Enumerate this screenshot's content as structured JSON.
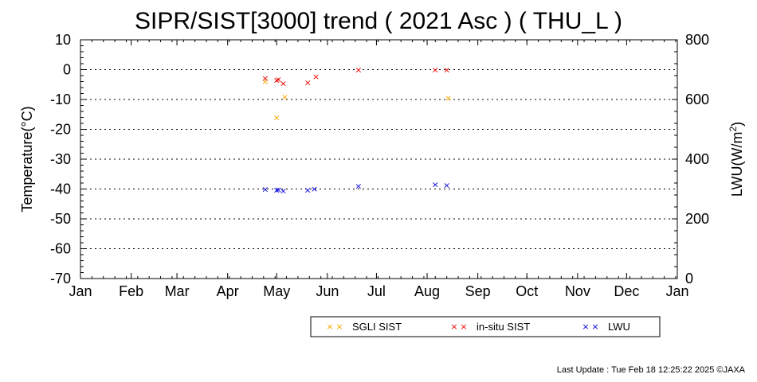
{
  "chart_data": {
    "type": "scatter",
    "title": "SIPR/SIST[3000] trend ( 2021 Asc ) ( THU_L )",
    "ylabel": "Temperature(°C)",
    "y2label_main": "LWU(W/m",
    "y2label_sup": "2",
    "y2label_tail": ")",
    "ylim": [
      -70,
      10
    ],
    "y2lim": [
      0,
      800
    ],
    "yticks": [
      "10",
      "0",
      "-10",
      "-20",
      "-30",
      "-40",
      "-50",
      "-60",
      "-70"
    ],
    "y2ticks": [
      "800",
      "600",
      "400",
      "200",
      "0"
    ],
    "xticks": [
      "Jan",
      "Feb",
      "Mar",
      "Apr",
      "May",
      "Jun",
      "Jul",
      "Aug",
      "Sep",
      "Oct",
      "Nov",
      "Dec",
      "Jan"
    ],
    "xlim_doy": [
      1,
      366
    ],
    "grid": "horizontal-dotted",
    "legend_position": "bottom-right",
    "series": [
      {
        "name": "SGLI SIST",
        "color": "#ffa500",
        "axis": "left",
        "x": [
          "2021-04-24",
          "2021-05-01",
          "2021-05-06",
          "2021-08-14"
        ],
        "y": [
          -3.8,
          -16,
          -9,
          -9.5
        ]
      },
      {
        "name": "in-situ SIST",
        "color": "#ee0000",
        "axis": "left",
        "x": [
          "2021-04-24",
          "2021-05-01",
          "2021-05-02",
          "2021-05-05",
          "2021-05-20",
          "2021-05-25",
          "2021-06-20",
          "2021-08-06",
          "2021-08-13"
        ],
        "y": [
          -2.8,
          -3.5,
          -3.2,
          -4.5,
          -4.3,
          -2.2,
          0,
          0,
          0
        ]
      },
      {
        "name": "LWU",
        "color": "#0000dd",
        "axis": "right",
        "x": [
          "2021-04-24",
          "2021-05-01",
          "2021-05-02",
          "2021-05-05",
          "2021-05-20",
          "2021-05-24",
          "2021-06-20",
          "2021-08-06",
          "2021-08-13"
        ],
        "y": [
          300,
          298,
          299,
          295,
          297,
          302,
          311,
          316,
          314
        ]
      }
    ],
    "footer": "Last Update : Tue Feb 18 12:25:22 2025  ©JAXA"
  }
}
